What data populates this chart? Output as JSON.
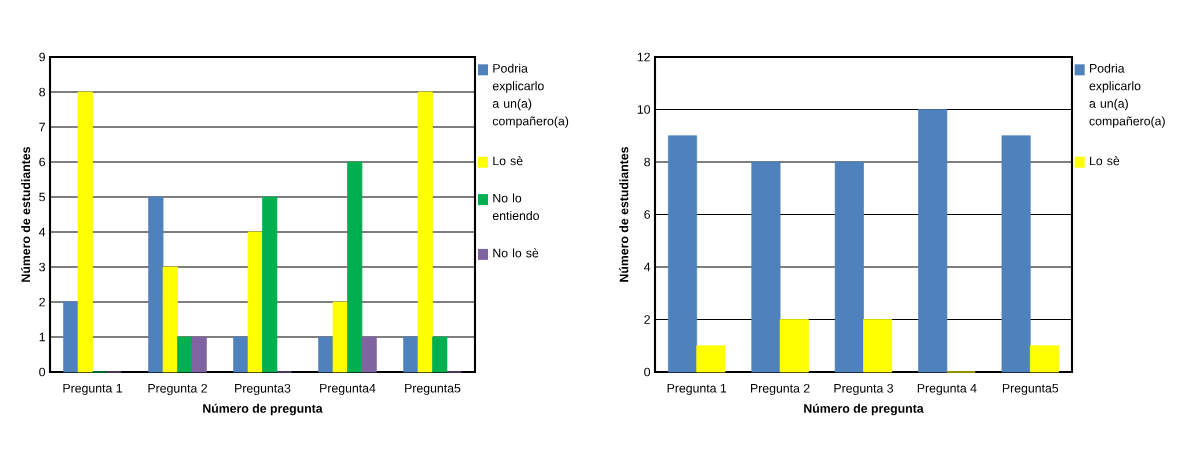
{
  "chart_data": [
    {
      "type": "bar",
      "xlabel": "Número de pregunta",
      "ylabel": "Número de estudiantes",
      "categories": [
        "Pregunta 1",
        "Pregunta 2",
        "Pregunta3",
        "Pregunta4",
        "Pregunta5"
      ],
      "ylim": [
        0,
        9
      ],
      "yticks": [
        0,
        1,
        2,
        3,
        4,
        5,
        6,
        7,
        8,
        9
      ],
      "grid": "y",
      "legend": "right",
      "series": [
        {
          "name": "Podria explicarlo a un(a) compañero(a)",
          "color": "#4f81bd",
          "values": [
            2,
            5,
            1,
            1,
            1
          ]
        },
        {
          "name": "Lo sè",
          "color": "#ffff00",
          "values": [
            8,
            3,
            4,
            2,
            8
          ]
        },
        {
          "name": "No lo entiendo",
          "color": "#00b050",
          "values": [
            0,
            1,
            5,
            6,
            1
          ]
        },
        {
          "name": "No lo sè",
          "color": "#8064a2",
          "values": [
            0,
            1,
            0,
            1,
            0
          ]
        }
      ]
    },
    {
      "type": "bar",
      "xlabel": "Número de pregunta",
      "ylabel": "Número de estudiantes",
      "categories": [
        "Pregunta 1",
        "Pregunta 2",
        "Pregunta 3",
        "Pregunta 4",
        "Pregunta5"
      ],
      "ylim": [
        0,
        12
      ],
      "yticks": [
        0,
        2,
        4,
        6,
        8,
        10,
        12
      ],
      "grid": "y",
      "legend": "right",
      "series": [
        {
          "name": "Podria explicarlo a un(a) compañero(a)",
          "color": "#4f81bd",
          "values": [
            9,
            8,
            8,
            10,
            9
          ]
        },
        {
          "name": "Lo sè",
          "color": "#ffff00",
          "values": [
            1,
            2,
            2,
            0,
            1
          ]
        }
      ]
    }
  ]
}
